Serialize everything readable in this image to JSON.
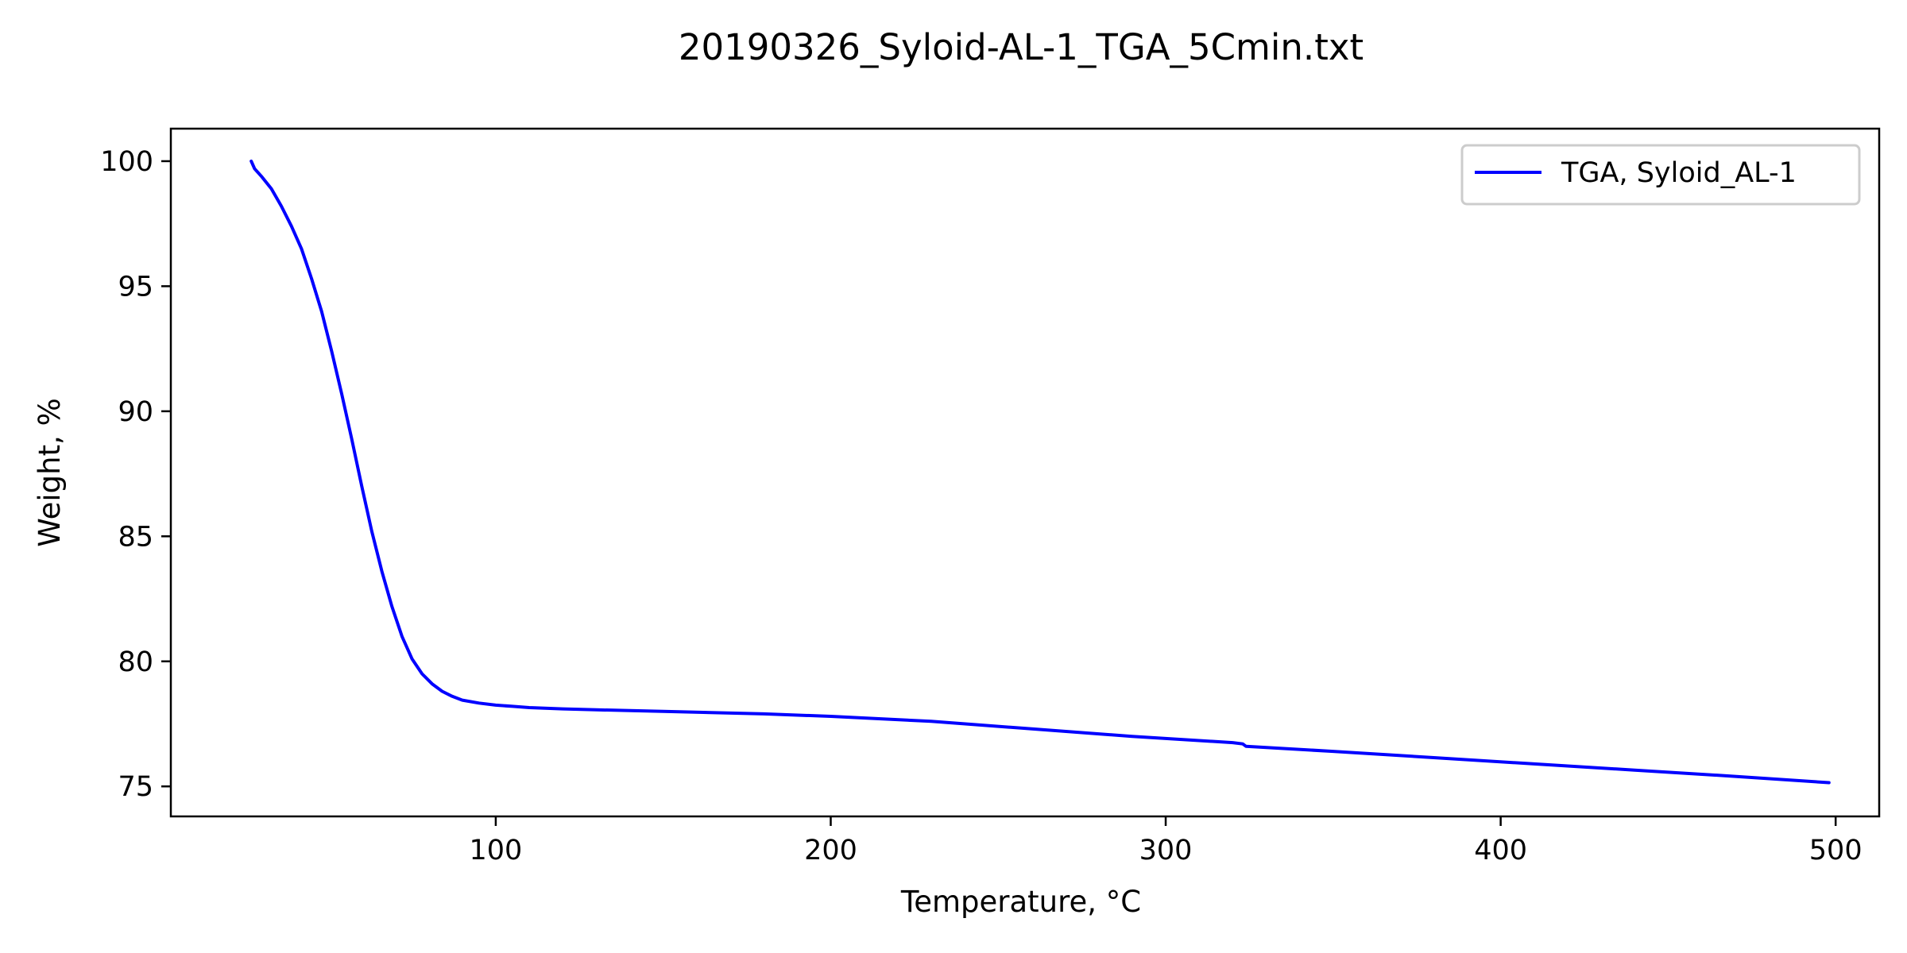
{
  "chart_data": {
    "type": "line",
    "title": "20190326_Syloid-AL-1_TGA_5Cmin.txt",
    "xlabel": "Temperature, °C",
    "ylabel": "Weight, %",
    "xlim": [
      3,
      513
    ],
    "ylim": [
      73.8,
      101.3
    ],
    "xticks": [
      100,
      200,
      300,
      400,
      500
    ],
    "yticks": [
      75,
      80,
      85,
      90,
      95,
      100
    ],
    "grid": false,
    "legend_position": "top-right",
    "series": [
      {
        "name": "TGA, Syloid_AL-1",
        "color": "#0000ff",
        "x": [
          27,
          28,
          30,
          33,
          36,
          39,
          42,
          45,
          48,
          51,
          54,
          57,
          60,
          63,
          66,
          69,
          72,
          75,
          78,
          81,
          84,
          87,
          90,
          95,
          100,
          105,
          110,
          120,
          130,
          150,
          180,
          200,
          230,
          260,
          290,
          320,
          323,
          324,
          350,
          380,
          410,
          440,
          470,
          498
        ],
        "values": [
          100.0,
          99.7,
          99.4,
          98.9,
          98.2,
          97.4,
          96.5,
          95.3,
          94.0,
          92.4,
          90.7,
          88.9,
          87.0,
          85.2,
          83.6,
          82.2,
          81.0,
          80.1,
          79.5,
          79.1,
          78.8,
          78.6,
          78.45,
          78.33,
          78.25,
          78.2,
          78.15,
          78.1,
          78.06,
          78.0,
          77.9,
          77.8,
          77.6,
          77.3,
          77.0,
          76.75,
          76.7,
          76.6,
          76.4,
          76.15,
          75.9,
          75.65,
          75.4,
          75.15
        ]
      }
    ]
  }
}
